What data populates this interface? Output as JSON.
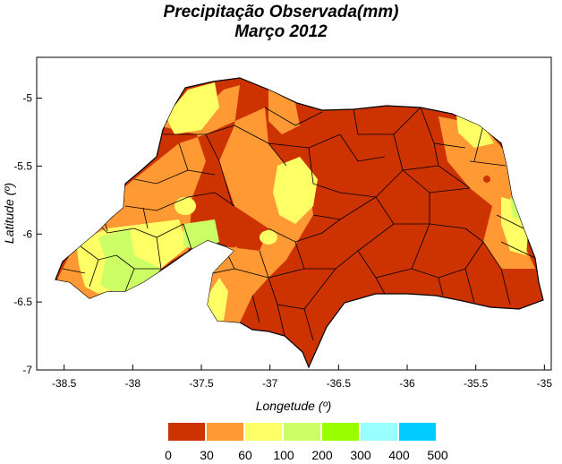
{
  "title": "Precipitação Observada(mm)",
  "subtitle": "Março  2012",
  "map": {
    "xlabel": "Longetude (º)",
    "ylabel": "Latitude (º)",
    "xticks": [
      "-38.5",
      "-38",
      "-37.5",
      "-37",
      "-36.5",
      "-36",
      "-35.5",
      "-35"
    ],
    "yticks": [
      "-5",
      "-5.5",
      "-6",
      "-6.5",
      "-7"
    ],
    "xlim": [
      -38.7,
      -34.95
    ],
    "ylim": [
      -7.0,
      -4.7
    ],
    "region_colors": {
      "0-30": "#cc3300",
      "30-60": "#ff9933",
      "60-100": "#ffff66",
      "100-200": "#ccff66",
      "200-300": "#99ff00",
      "300-400": "#99ffff",
      "400-500": "#00ccff"
    }
  },
  "legend": {
    "colors": [
      "#cc3300",
      "#ff9933",
      "#ffff66",
      "#ccff66",
      "#99ff00",
      "#99ffff",
      "#00ccff"
    ],
    "labels": [
      "0",
      "30",
      "60",
      "100",
      "200",
      "300",
      "400",
      "500"
    ]
  }
}
